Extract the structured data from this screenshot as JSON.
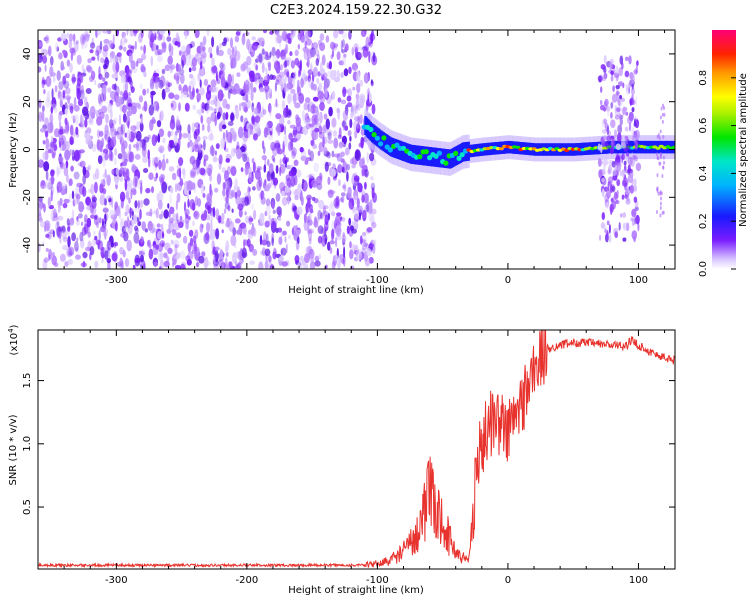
{
  "figure_title": "C2E3.2024.159.22.30.G32",
  "chart_data": [
    {
      "type": "heatmap",
      "xlabel": "Height of straight line (km)",
      "ylabel": "Frequency (Hz)",
      "xlim": [
        -360,
        128
      ],
      "ylim": [
        -50,
        50
      ],
      "xticks": [
        -300,
        -200,
        -100,
        0,
        100
      ],
      "xtick_labels": [
        "-300",
        "-200",
        "-100",
        "0",
        "100"
      ],
      "yticks": [
        -40,
        -20,
        0,
        20,
        40
      ],
      "ytick_labels": [
        "-40",
        "-20",
        "0",
        "20",
        "40"
      ],
      "colorbar": {
        "label": "Normalized spectral amplitude",
        "range": [
          0,
          1
        ],
        "ticks": [
          0,
          0.2,
          0.4,
          0.6,
          0.8
        ],
        "tick_labels": [
          "0.0",
          "0.2",
          "0.4",
          "0.6",
          "0.8"
        ],
        "colormap": "rainbow"
      },
      "regions": [
        {
          "kind": "broadband-noise",
          "x": [
            -360,
            -102
          ],
          "y": [
            -50,
            50
          ]
        },
        {
          "kind": "carrier-track",
          "x": [
            -110,
            128
          ],
          "y_center": [
            10,
            7,
            4,
            1,
            -2,
            -3,
            -4,
            -1,
            0,
            1,
            0,
            0,
            1,
            1,
            1
          ],
          "x_points": [
            -110,
            -105,
            -98,
            -90,
            -75,
            -60,
            -45,
            -35,
            -20,
            0,
            20,
            50,
            80,
            100,
            128
          ]
        },
        {
          "kind": "noise-burst",
          "x": [
            70,
            100
          ],
          "y": [
            -38,
            38
          ]
        },
        {
          "kind": "noise-spike",
          "x": [
            114,
            120
          ],
          "y": [
            -30,
            20
          ]
        }
      ]
    },
    {
      "type": "line",
      "xlabel": "Height of straight line (km)",
      "ylabel": "SNR (10 * v/v)",
      "multiplier": "(x10",
      "multiplier_exp": "4",
      "multiplier_close": ")",
      "xlim": [
        -360,
        128
      ],
      "ylim": [
        0.01,
        1.9
      ],
      "xticks": [
        -300,
        -200,
        -100,
        0,
        100
      ],
      "xtick_labels": [
        "-300",
        "-200",
        "-100",
        "0",
        "100"
      ],
      "yticks": [
        0.5,
        1.0,
        1.5
      ],
      "ytick_labels": [
        "0.5",
        "1.0",
        "1.5"
      ],
      "color": "#e8322d",
      "series": [
        {
          "x": [
            -360,
            -300,
            -250,
            -200,
            -150,
            -110,
            -100,
            -90,
            -80,
            -70,
            -65,
            -60,
            -55,
            -50,
            -45,
            -40,
            -35,
            -30,
            -27,
            -25,
            -22,
            -20,
            -15,
            -10,
            -5,
            0,
            5,
            10,
            15,
            20,
            25,
            30,
            40,
            50,
            60,
            70,
            80,
            90,
            95,
            100,
            110,
            120,
            128
          ],
          "y": [
            0.04,
            0.04,
            0.04,
            0.04,
            0.04,
            0.04,
            0.05,
            0.08,
            0.15,
            0.28,
            0.45,
            0.6,
            0.45,
            0.4,
            0.25,
            0.15,
            0.1,
            0.08,
            0.4,
            0.75,
            0.9,
            1.0,
            1.15,
            1.2,
            1.15,
            1.1,
            1.2,
            1.3,
            1.45,
            1.58,
            1.68,
            1.75,
            1.78,
            1.8,
            1.8,
            1.79,
            1.78,
            1.77,
            1.82,
            1.78,
            1.72,
            1.68,
            1.66
          ]
        }
      ]
    }
  ]
}
